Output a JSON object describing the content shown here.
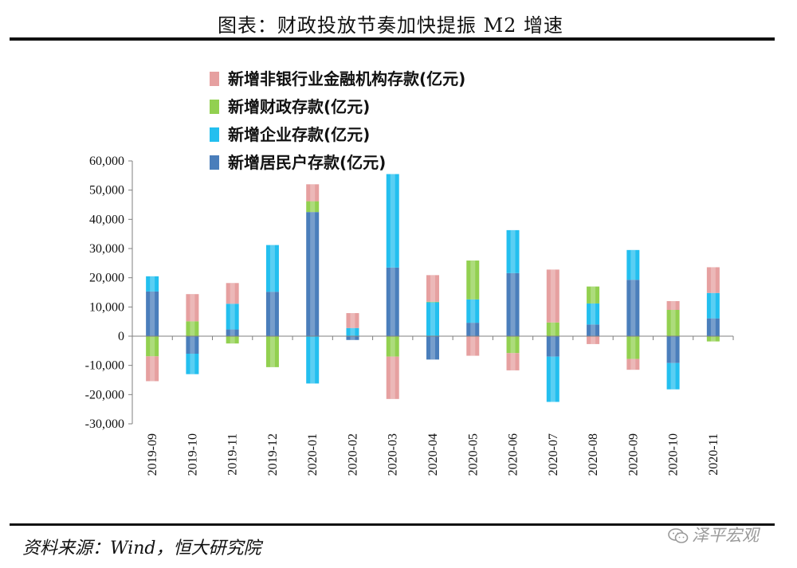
{
  "header": {
    "title": "图表：财政投放节奏加快提振 M2 增速"
  },
  "footer": {
    "source": "资料来源：Wind，恒大研究院",
    "watermark": "泽平宏观"
  },
  "chart_data": {
    "type": "bar",
    "stacked": true,
    "categories": [
      "2019-09",
      "2019-10",
      "2019-11",
      "2019-12",
      "2020-01",
      "2020-02",
      "2020-03",
      "2020-04",
      "2020-05",
      "2020-06",
      "2020-07",
      "2020-08",
      "2020-09",
      "2020-10",
      "2020-11"
    ],
    "ylim": [
      -30000,
      60000
    ],
    "yticks": [
      "60,000",
      "50,000",
      "40,000",
      "30,000",
      "20,000",
      "10,000",
      "0",
      "-10,000",
      "-20,000",
      "-30,000"
    ],
    "ytick_values": [
      60000,
      50000,
      40000,
      30000,
      20000,
      10000,
      0,
      -10000,
      -20000,
      -30000
    ],
    "legend_position": "top-left",
    "series": [
      {
        "name": "新增居民户存款(亿元)",
        "color": "#4a7ebb",
        "values": [
          15300,
          -6000,
          2300,
          15200,
          42500,
          -1300,
          23500,
          -8000,
          4600,
          21600,
          -7000,
          4000,
          19300,
          -9200,
          6100
        ]
      },
      {
        "name": "新增企业存款(亿元)",
        "color": "#23bfef",
        "values": [
          5200,
          -7000,
          8800,
          16000,
          -16200,
          2800,
          32000,
          11600,
          8000,
          14700,
          -15500,
          7200,
          10200,
          -9000,
          8700
        ]
      },
      {
        "name": "新增财政存款(亿元)",
        "color": "#92d050",
        "values": [
          -6900,
          5100,
          -2500,
          -10600,
          3700,
          0,
          -7000,
          200,
          13300,
          -5800,
          4700,
          5800,
          -7800,
          9000,
          -1800
        ]
      },
      {
        "name": "新增非银行业金融机构存款(亿元)",
        "color": "#e6a0a0",
        "values": [
          -8500,
          9300,
          7100,
          0,
          5800,
          5100,
          -14500,
          9100,
          -6700,
          -5900,
          18100,
          -2700,
          -3700,
          3000,
          8800
        ]
      }
    ],
    "legend_order": [
      "新增非银行业金融机构存款(亿元)",
      "新增财政存款(亿元)",
      "新增企业存款(亿元)",
      "新增居民户存款(亿元)"
    ]
  }
}
